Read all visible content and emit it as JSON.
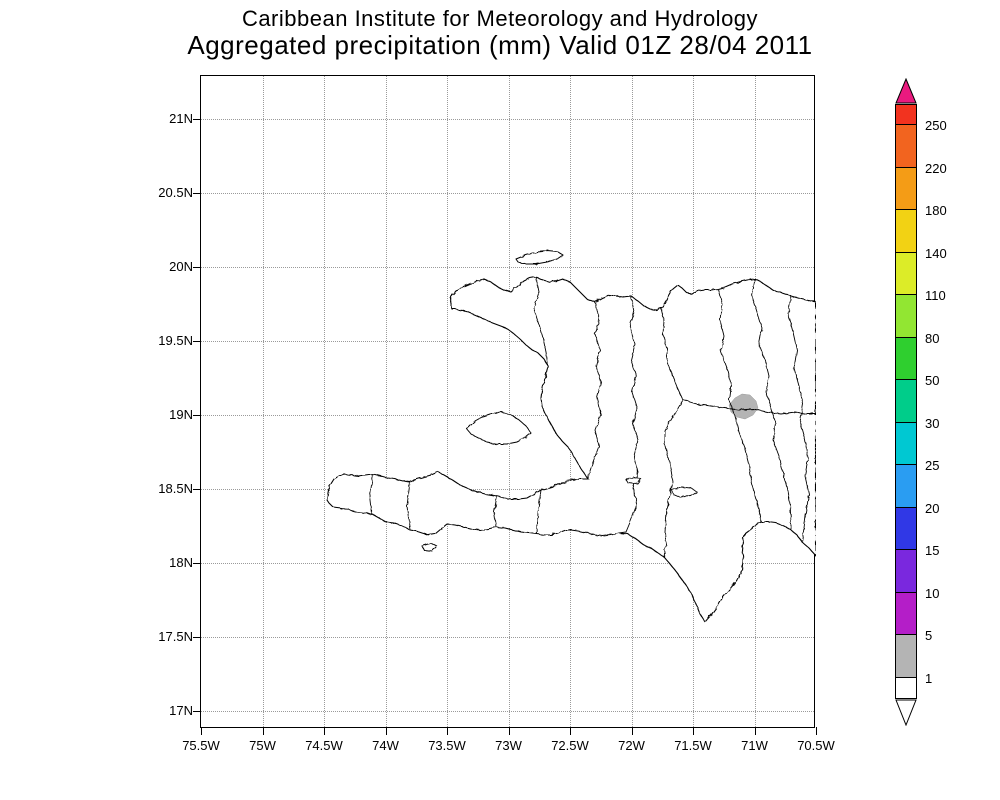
{
  "header": {
    "line1": "Caribbean Institute for Meteorology and Hydrology",
    "line2": "Aggregated precipitation (mm) Valid 01Z 28/04 2011"
  },
  "map": {
    "y_ticks": [
      "21N",
      "20.5N",
      "20N",
      "19.5N",
      "19N",
      "18.5N",
      "18N",
      "17.5N",
      "17N"
    ],
    "x_ticks": [
      "75.5W",
      "75W",
      "74.5W",
      "74W",
      "73.5W",
      "73W",
      "72.5W",
      "72W",
      "71.5W",
      "71W",
      "70.5W"
    ]
  },
  "colorbar": {
    "arrow_top_color": "#ea1a7f",
    "arrow_bottom_color": "#ffffff",
    "segments": [
      {
        "color": "#f2331f",
        "label": "250"
      },
      {
        "color": "#f2641f",
        "label": "220"
      },
      {
        "color": "#f49c16",
        "label": "180"
      },
      {
        "color": "#f2d214",
        "label": "140"
      },
      {
        "color": "#dcec28",
        "label": "110"
      },
      {
        "color": "#92e632",
        "label": "80"
      },
      {
        "color": "#2fcf2f",
        "label": "50"
      },
      {
        "color": "#00cd8a",
        "label": "30"
      },
      {
        "color": "#00c8d2",
        "label": "25"
      },
      {
        "color": "#2a9df2",
        "label": "20"
      },
      {
        "color": "#3038e6",
        "label": "15"
      },
      {
        "color": "#7a28de",
        "label": "10"
      },
      {
        "color": "#b41ec8",
        "label": "5"
      },
      {
        "color": "#b4b4b4",
        "label": "1"
      },
      {
        "color": "#ffffff",
        "label": ""
      }
    ]
  },
  "precip_blob": {
    "color": "#b4b4b4"
  }
}
